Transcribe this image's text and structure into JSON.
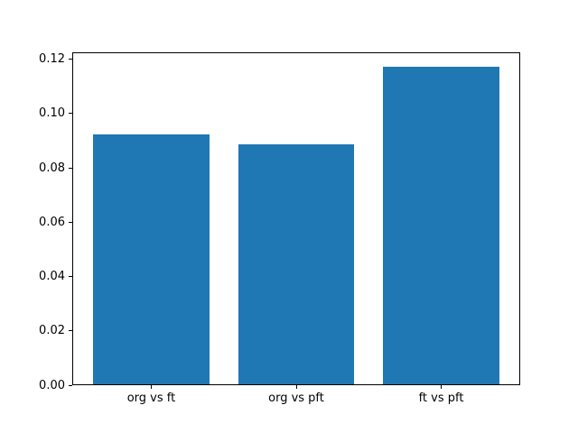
{
  "chart_data": {
    "type": "bar",
    "title": "",
    "xlabel": "",
    "ylabel": "",
    "categories": [
      "org vs ft",
      "org vs pft",
      "ft vs pft"
    ],
    "values": [
      0.0919,
      0.0882,
      0.1168
    ],
    "yticks": [
      "0.00",
      "0.02",
      "0.04",
      "0.06",
      "0.08",
      "0.10",
      "0.12"
    ],
    "ylim": [
      0,
      0.1226
    ],
    "xlim": [
      -0.545,
      2.545
    ],
    "bar_width": 0.8,
    "bar_color": "#1f77b4",
    "spine_color": "#000000",
    "text_color": "#000000",
    "background": "#ffffff",
    "grid": false,
    "legend": false
  }
}
